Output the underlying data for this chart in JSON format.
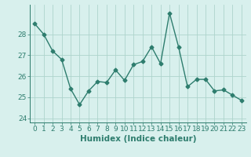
{
  "x": [
    0,
    1,
    2,
    3,
    4,
    5,
    6,
    7,
    8,
    9,
    10,
    11,
    12,
    13,
    14,
    15,
    16,
    17,
    18,
    19,
    20,
    21,
    22,
    23
  ],
  "y": [
    28.5,
    28.0,
    27.2,
    26.8,
    25.4,
    24.65,
    25.3,
    25.75,
    25.7,
    26.3,
    25.8,
    26.55,
    26.7,
    27.4,
    26.6,
    29.0,
    27.4,
    25.5,
    25.85,
    25.85,
    25.3,
    25.35,
    25.1,
    24.85
  ],
  "line_color": "#2e7d6e",
  "marker": "D",
  "marker_size": 2.5,
  "bg_color": "#d8f0ed",
  "grid_color": "#aed4cc",
  "xlabel": "Humidex (Indice chaleur)",
  "ylim": [
    23.8,
    29.4
  ],
  "xlim": [
    -0.5,
    23.5
  ],
  "yticks": [
    24,
    25,
    26,
    27,
    28
  ],
  "xticks": [
    0,
    1,
    2,
    3,
    4,
    5,
    6,
    7,
    8,
    9,
    10,
    11,
    12,
    13,
    14,
    15,
    16,
    17,
    18,
    19,
    20,
    21,
    22,
    23
  ],
  "tick_fontsize": 6.5,
  "xlabel_fontsize": 7.5
}
